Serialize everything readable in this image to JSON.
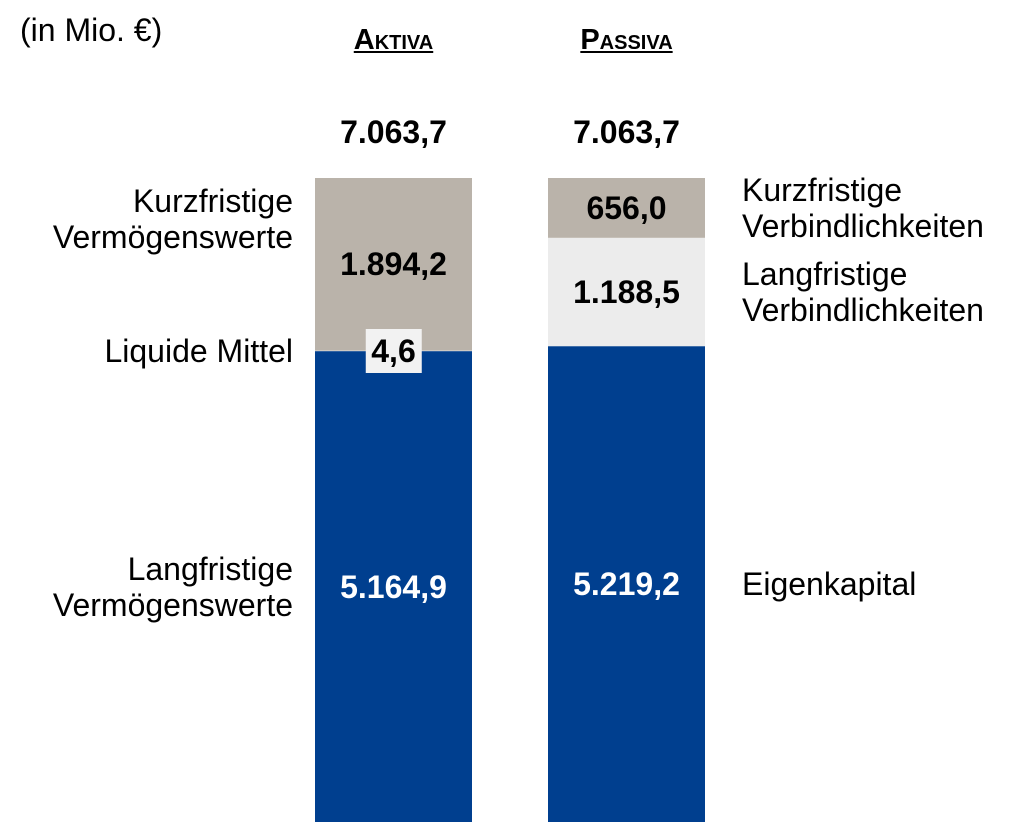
{
  "chart_data": {
    "type": "stacked_bar",
    "title": "(in Mio. €)",
    "bars": [
      {
        "category": "Aktiva",
        "total": 7063.7,
        "total_label": "7.063,7",
        "side": "left",
        "segments": [
          {
            "name": "Langfristige Vermögenswerte",
            "value": 5164.9,
            "value_label": "5.164,9",
            "color": "#003f8f",
            "label_color": "#ffffff"
          },
          {
            "name": "Liquide Mittel",
            "value": 4.6,
            "value_label": "4,6",
            "color": "#f2f2f2",
            "label_color": "#000000"
          },
          {
            "name": "Kurzfristige Vermögenswerte",
            "value": 1894.2,
            "value_label": "1.894,2",
            "color": "#bab3aa",
            "label_color": "#000000"
          }
        ]
      },
      {
        "category": "Passiva",
        "total": 7063.7,
        "total_label": "7.063,7",
        "side": "right",
        "segments": [
          {
            "name": "Eigenkapital",
            "value": 5219.2,
            "value_label": "5.219,2",
            "color": "#003f8f",
            "label_color": "#ffffff"
          },
          {
            "name": "Langfristige Verbindlichkeiten",
            "value": 1188.5,
            "value_label": "1.188,5",
            "color": "#ececec",
            "label_color": "#000000"
          },
          {
            "name": "Kurzfristige Verbindlichkeiten",
            "value": 656.0,
            "value_label": "656,0",
            "color": "#bab3aa",
            "label_color": "#000000"
          }
        ]
      }
    ]
  }
}
